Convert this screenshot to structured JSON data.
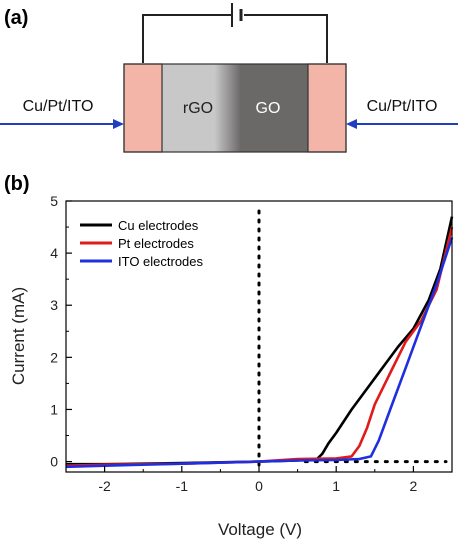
{
  "panel_a": {
    "label": "(a)",
    "left_lead": "Cu/Pt/ITO",
    "right_lead": "Cu/Pt/ITO",
    "regions": [
      "rGO",
      "GO"
    ],
    "colors": {
      "electrode": "#f2b5a8",
      "rgo": "#c8c8c8",
      "go": "#6b6868",
      "arrow": "#1f3fbf",
      "wire": "#222222"
    }
  },
  "panel_b": {
    "label": "(b)"
  },
  "chart_data": {
    "type": "line",
    "xlabel": "Voltage (V)",
    "ylabel": "Current (mA)",
    "xlim": [
      -2.5,
      2.5
    ],
    "ylim": [
      -0.2,
      5
    ],
    "xticks": [
      -2,
      -1,
      0,
      1,
      2
    ],
    "yticks": [
      0,
      1,
      2,
      3,
      4,
      5
    ],
    "tick_labels_x": [
      "-2",
      "-1",
      "0",
      "1",
      "2"
    ],
    "tick_labels_y": [
      "0",
      "1",
      "2",
      "3",
      "4",
      "5"
    ],
    "legend_position": "top-left",
    "reference_lines": {
      "vertical_dotted_at_x": 0,
      "horizontal_dotted_at_y": 0
    },
    "series": [
      {
        "name": "Cu electrodes",
        "color": "#000000",
        "x": [
          -2.5,
          -2.0,
          -1.0,
          0.0,
          0.5,
          0.75,
          0.82,
          0.9,
          1.0,
          1.2,
          1.5,
          1.8,
          2.0,
          2.2,
          2.35,
          2.5
        ],
        "y": [
          -0.05,
          -0.05,
          -0.03,
          0.0,
          0.02,
          0.05,
          0.15,
          0.35,
          0.55,
          1.0,
          1.6,
          2.2,
          2.55,
          3.1,
          3.7,
          4.7
        ]
      },
      {
        "name": "Pt electrodes",
        "color": "#e11b1b",
        "x": [
          -2.5,
          -2.0,
          -1.0,
          0.0,
          0.5,
          1.0,
          1.2,
          1.3,
          1.4,
          1.5,
          1.7,
          1.9,
          2.1,
          2.3,
          2.5
        ],
        "y": [
          -0.08,
          -0.06,
          -0.04,
          0.0,
          0.05,
          0.06,
          0.1,
          0.3,
          0.65,
          1.1,
          1.7,
          2.3,
          2.7,
          3.3,
          4.5
        ]
      },
      {
        "name": "ITO electrodes",
        "color": "#1f2fe0",
        "x": [
          -2.5,
          -2.0,
          -1.0,
          0.0,
          0.5,
          1.0,
          1.3,
          1.45,
          1.55,
          1.7,
          1.9,
          2.1,
          2.3,
          2.5
        ],
        "y": [
          -0.1,
          -0.08,
          -0.04,
          0.0,
          0.02,
          0.03,
          0.05,
          0.1,
          0.4,
          1.0,
          1.8,
          2.6,
          3.4,
          4.3
        ]
      }
    ]
  }
}
